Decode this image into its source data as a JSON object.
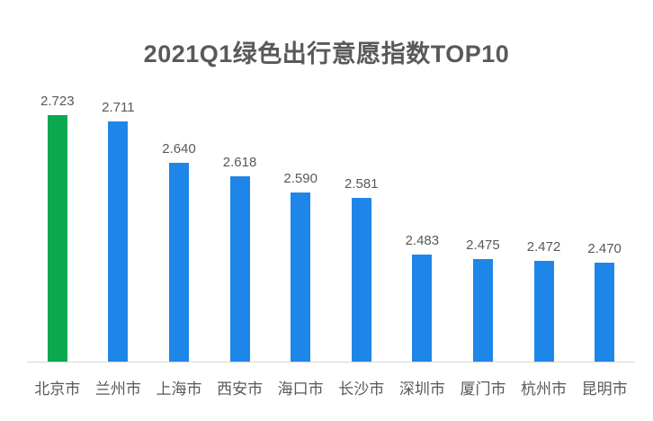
{
  "title": "2021Q1绿色出行意愿指数TOP10",
  "colors": {
    "highlight_bar": "#0ba84f",
    "default_bar": "#1e86e8",
    "label_text": "#595959",
    "axis_line": "#d9d9d9",
    "background": "#ffffff"
  },
  "chart_data": {
    "type": "bar",
    "title": "2021Q1绿色出行意愿指数TOP10",
    "categories": [
      "北京市",
      "兰州市",
      "上海市",
      "西安市",
      "海口市",
      "长沙市",
      "深圳市",
      "厦门市",
      "杭州市",
      "昆明市"
    ],
    "values": [
      2.723,
      2.711,
      2.64,
      2.618,
      2.59,
      2.581,
      2.483,
      2.475,
      2.472,
      2.47
    ],
    "value_labels": [
      "2.723",
      "2.711",
      "2.640",
      "2.618",
      "2.590",
      "2.581",
      "2.483",
      "2.475",
      "2.472",
      "2.470"
    ],
    "highlight_index": 0,
    "xlabel": "",
    "ylabel": "",
    "ylim": [
      2.3,
      2.75
    ],
    "grid": false,
    "legend": false,
    "data_labels": true,
    "baseline_axis": true
  }
}
